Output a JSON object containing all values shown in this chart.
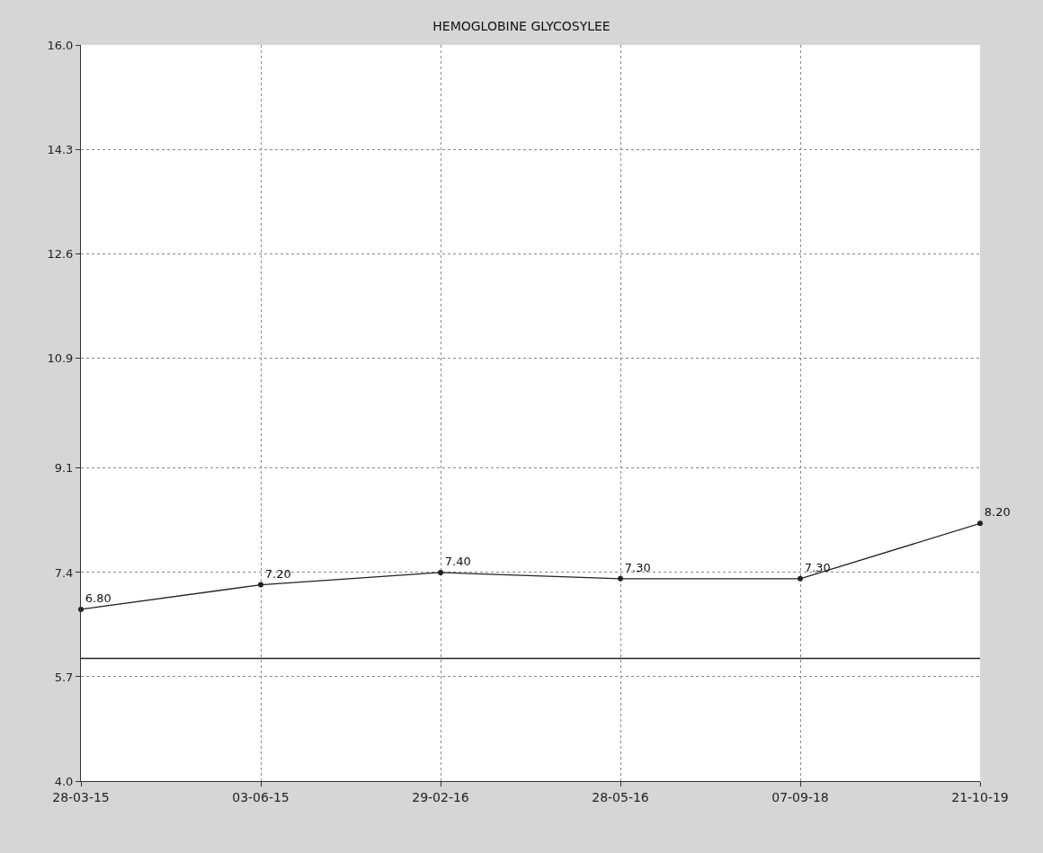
{
  "chart_data": {
    "type": "line",
    "title": "HEMOGLOBINE GLYCOSYLEE",
    "categories": [
      "28-03-15",
      "03-06-15",
      "29-02-16",
      "28-05-16",
      "07-09-18",
      "21-10-19"
    ],
    "series": [
      {
        "color": "#222222",
        "values": [
          6.8,
          7.2,
          7.4,
          7.3,
          7.3,
          8.2
        ],
        "value_labels": [
          "6.80",
          "7.20",
          "7.40",
          "7.30",
          "7.30",
          "8.20"
        ]
      }
    ],
    "ylim": [
      4.0,
      16.0
    ],
    "yticks": [
      {
        "value": 4.0,
        "label": "4.0"
      },
      5.7,
      7.4,
      9.1,
      10.9,
      12.6,
      14.3,
      {
        "value": 16.0,
        "label": "16.0"
      }
    ],
    "ref_lines": [
      {
        "axis": "y",
        "value": 6.0,
        "color": "#222222",
        "line_style": "solid"
      }
    ],
    "grid": true,
    "marker": "circle",
    "line_style": "solid"
  }
}
